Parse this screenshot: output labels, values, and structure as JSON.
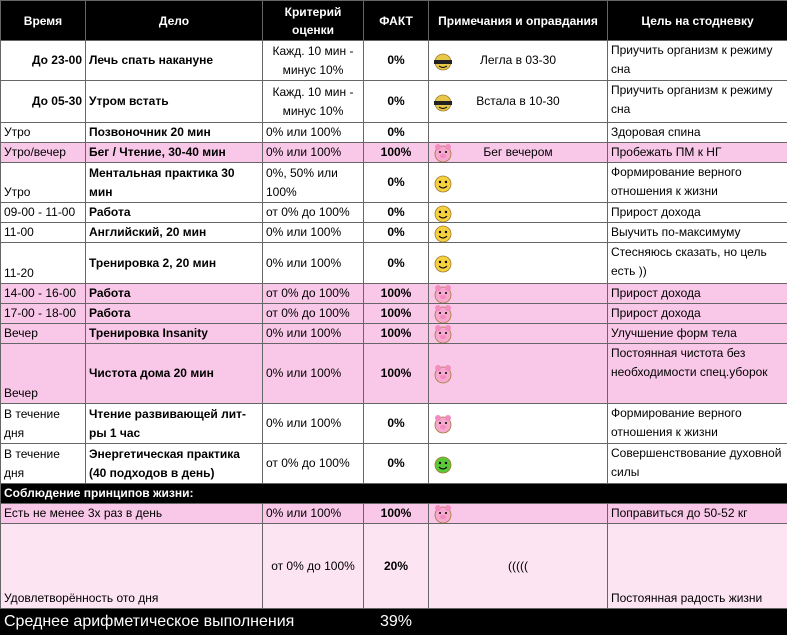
{
  "header": [
    "Время",
    "Дело",
    "Критерий оценки",
    "ФАКТ",
    "Примечания и оправдания",
    "Цель на стодневку"
  ],
  "rows": [
    {
      "time": "До 23-00",
      "task": "Лечь спать накануне",
      "criterion": "Кажд. 10 мин - минус 10%",
      "fact": "0%",
      "note": "Легла в 03-30",
      "goal": "Приучить организм к режиму сна"
    },
    {
      "time": "До 05-30",
      "task": "Утром встать",
      "criterion": "Кажд. 10 мин - минус 10%",
      "fact": "0%",
      "note": "Встала в 10-30",
      "goal": "Приучить организм к режиму сна"
    },
    {
      "time": "Утро",
      "task": "Позвоночник 20 мин",
      "criterion": "0% или 100%",
      "fact": "0%",
      "goal": "Здоровая спина"
    },
    {
      "time": "Утро/вечер",
      "task": "Бег / Чтение, 30-40 мин",
      "criterion": "0% или 100%",
      "fact": "100%",
      "note": "Бег вечером",
      "goal": "Пробежать ПМ к НГ"
    },
    {
      "time": "Утро",
      "task": "Ментальная практика 30 мин",
      "criterion": "0%, 50% или 100%",
      "fact": "0%",
      "goal": "Формирование верного отношения к жизни"
    },
    {
      "time": "09-00 - 11-00",
      "task": "Работа",
      "criterion": "от 0% до 100%",
      "fact": "0%",
      "goal": "Прирост дохода"
    },
    {
      "time": "11-00",
      "task": "Английский, 20 мин",
      "criterion": "0% или 100%",
      "fact": "0%",
      "goal": "Выучить по-максимуму"
    },
    {
      "time": "11-20",
      "task": "Тренировка 2, 20 мин",
      "criterion": "0% или 100%",
      "fact": "0%",
      "goal": "Стесняюсь сказать, но цель есть ))"
    },
    {
      "time": "14-00 - 16-00",
      "task": "Работа",
      "criterion": "от 0% до 100%",
      "fact": "100%",
      "goal": "Прирост дохода"
    },
    {
      "time": "17-00 - 18-00",
      "task": "Работа",
      "criterion": "от 0% до 100%",
      "fact": "100%",
      "goal": "Прирост дохода"
    },
    {
      "time": "Вечер",
      "task": "Тренировка Insanity",
      "criterion": "0% или 100%",
      "fact": "100%",
      "goal": "Улучшение форм тела"
    },
    {
      "time": "Вечер",
      "task": "Чистота дома 20 мин",
      "criterion": "0% или 100%",
      "fact": "100%",
      "goal": "Постоянная чистота без необходимости спец.уборок"
    },
    {
      "time": "В течение дня",
      "task": "Чтение развивающей лит-ры 1 час",
      "criterion": "0% или 100%",
      "fact": "0%",
      "goal": "Формирование верного отношения к жизни"
    },
    {
      "time": "В течение дня",
      "task": "Энергетическая практика (40 подходов в день)",
      "criterion": "от 0% до 100%",
      "fact": "0%",
      "goal": "Совершенствование духовной силы"
    }
  ],
  "section_title": "Соблюдение принципов жизни:",
  "principles": [
    {
      "label": "Есть не менее 3х раз в день",
      "criterion": "0% или 100%",
      "fact": "100%",
      "goal": "Поправиться до 50-52 кг"
    },
    {
      "label": "Удовлетворённость ото дня",
      "criterion": "от 0% до 100%",
      "fact": "20%",
      "note": "(((((",
      "goal": "Постоянная радость жизни"
    }
  ],
  "summary": {
    "label": "Среднее арифметическое выполнения",
    "value": "39%"
  }
}
